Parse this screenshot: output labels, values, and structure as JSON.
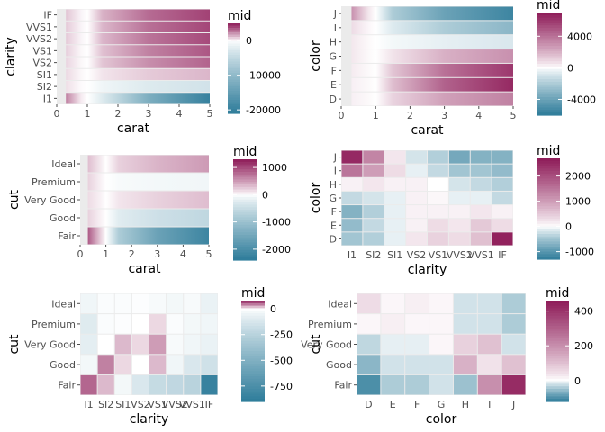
{
  "palette": {
    "low": "#2e7c9a",
    "mid": "#ffffff",
    "high": "#8e1b58",
    "panel_background": "#ebebeb",
    "tick_color": "#4d4d4d"
  },
  "chart_data": [
    {
      "type": "heatmap",
      "id": "clarity-by-carat",
      "xlabel": "carat",
      "ylabel": "clarity",
      "x_ticks": [
        0,
        1,
        2,
        3,
        4,
        5
      ],
      "xlim": [
        0,
        5
      ],
      "y_categories": [
        "I1",
        "SI2",
        "SI1",
        "VS2",
        "VS1",
        "VVS2",
        "VVS1",
        "IF"
      ],
      "legend": {
        "title": "mid",
        "ticks": [
          0,
          -10000,
          -20000
        ],
        "range": [
          -21000,
          5000
        ]
      },
      "gradient_breaks": [
        0.3,
        0.8,
        1.0,
        1.5,
        3.0,
        5.0
      ],
      "rows": [
        {
          "label": "I1",
          "values": [
            2500,
            300,
            0,
            -2500,
            -12000,
            -20000
          ]
        },
        {
          "label": "SI2",
          "values": [
            500,
            50,
            0,
            -1000,
            -2500,
            -3500
          ]
        },
        {
          "label": "SI1",
          "values": [
            600,
            100,
            0,
            400,
            900,
            1300
          ]
        },
        {
          "label": "VS2",
          "values": [
            700,
            100,
            0,
            1000,
            2200,
            3200
          ]
        },
        {
          "label": "VS1",
          "values": [
            800,
            100,
            0,
            1100,
            2500,
            3500
          ]
        },
        {
          "label": "VVS2",
          "values": [
            900,
            150,
            0,
            1300,
            2800,
            3800
          ]
        },
        {
          "label": "VVS1",
          "values": [
            900,
            150,
            0,
            1300,
            2900,
            3900
          ]
        },
        {
          "label": "IF",
          "values": [
            1000,
            150,
            0,
            1400,
            3000,
            4000
          ]
        }
      ]
    },
    {
      "type": "heatmap",
      "id": "color-by-carat",
      "xlabel": "carat",
      "ylabel": "color",
      "x_ticks": [
        0,
        1,
        2,
        3,
        4,
        5
      ],
      "xlim": [
        0,
        5
      ],
      "y_categories": [
        "D",
        "E",
        "F",
        "G",
        "H",
        "I",
        "J"
      ],
      "legend": {
        "title": "mid",
        "ticks": [
          4000,
          0,
          -4000
        ],
        "range": [
          -6000,
          7000
        ]
      },
      "gradient_breaks": [
        0.3,
        0.8,
        1.0,
        1.5,
        3.0,
        5.0
      ],
      "rows": [
        {
          "label": "D",
          "values": [
            300,
            100,
            0,
            1000,
            2500,
            3500
          ]
        },
        {
          "label": "E",
          "values": [
            300,
            100,
            0,
            1600,
            4500,
            6500
          ]
        },
        {
          "label": "F",
          "values": [
            400,
            100,
            0,
            1400,
            4000,
            6000
          ]
        },
        {
          "label": "G",
          "values": [
            500,
            100,
            0,
            600,
            2000,
            3000
          ]
        },
        {
          "label": "H",
          "values": [
            500,
            100,
            0,
            -200,
            -500,
            -800
          ]
        },
        {
          "label": "I",
          "values": [
            800,
            150,
            0,
            -700,
            -2000,
            -3000
          ]
        },
        {
          "label": "J",
          "values": [
            3000,
            500,
            0,
            -2000,
            -4000,
            -5500
          ]
        }
      ]
    },
    {
      "type": "heatmap",
      "id": "cut-by-carat",
      "xlabel": "carat",
      "ylabel": "cut",
      "x_ticks": [
        0,
        1,
        2,
        3,
        4,
        5
      ],
      "xlim": [
        0,
        5
      ],
      "y_categories": [
        "Fair",
        "Good",
        "Very Good",
        "Premium",
        "Ideal"
      ],
      "legend": {
        "title": "mid",
        "ticks": [
          1000,
          0,
          -1000,
          -2000
        ],
        "range": [
          -2400,
          1300
        ]
      },
      "gradient_breaks": [
        0.3,
        0.8,
        1.0,
        1.5,
        3.0,
        5.0
      ],
      "rows": [
        {
          "label": "Fair",
          "values": [
            900,
            200,
            0,
            -800,
            -1600,
            -2200
          ]
        },
        {
          "label": "Good",
          "values": [
            200,
            50,
            0,
            -250,
            -450,
            -600
          ]
        },
        {
          "label": "Very Good",
          "values": [
            150,
            50,
            0,
            100,
            200,
            300
          ]
        },
        {
          "label": "Premium",
          "values": [
            200,
            50,
            0,
            -50,
            -80,
            -100
          ]
        },
        {
          "label": "Ideal",
          "values": [
            300,
            80,
            0,
            200,
            350,
            500
          ]
        }
      ]
    },
    {
      "type": "heatmap",
      "id": "color-by-clarity",
      "xlabel": "clarity",
      "ylabel": "color",
      "x_categories": [
        "I1",
        "SI2",
        "SI1",
        "VS2",
        "VS1",
        "VVS2",
        "VVS1",
        "IF"
      ],
      "y_categories": [
        "D",
        "E",
        "F",
        "G",
        "H",
        "I",
        "J"
      ],
      "legend": {
        "title": "mid",
        "ticks": [
          2000,
          1000,
          0,
          -1000
        ],
        "range": [
          -1300,
          2700
        ]
      },
      "values": [
        [
          -500,
          -400,
          -100,
          200,
          400,
          300,
          600,
          2600
        ],
        [
          -600,
          -300,
          -100,
          100,
          300,
          200,
          500,
          300
        ],
        [
          -700,
          -400,
          -100,
          100,
          100,
          100,
          200,
          100
        ],
        [
          -300,
          -200,
          -100,
          100,
          50,
          -100,
          -100,
          -300
        ],
        [
          100,
          200,
          100,
          100,
          0,
          -200,
          -300,
          -400
        ],
        [
          1500,
          1000,
          300,
          -100,
          -300,
          -500,
          -500,
          -600
        ],
        [
          2500,
          1300,
          200,
          -200,
          -400,
          -800,
          -700,
          -700
        ]
      ]
    },
    {
      "type": "heatmap",
      "id": "cut-by-clarity",
      "xlabel": "clarity",
      "ylabel": "cut",
      "x_categories": [
        "I1",
        "SI2",
        "SI1",
        "VS2",
        "VS1",
        "VVS2",
        "VVS1",
        "IF"
      ],
      "y_categories": [
        "Fair",
        "Good",
        "Very Good",
        "Premium",
        "Ideal"
      ],
      "legend": {
        "title": "mid",
        "ticks": [
          0,
          -250,
          -500,
          -750
        ],
        "range": [
          -900,
          80
        ]
      },
      "values": [
        [
          50,
          20,
          -30,
          -120,
          -200,
          -220,
          -250,
          -850
        ],
        [
          -30,
          40,
          10,
          0,
          20,
          -40,
          -120,
          -160
        ],
        [
          -80,
          0,
          20,
          10,
          30,
          -20,
          -40,
          -60
        ],
        [
          -100,
          -10,
          -5,
          0,
          10,
          -10,
          -30,
          -40
        ],
        [
          -40,
          -10,
          -10,
          -5,
          -20,
          -30,
          -20,
          -60
        ]
      ]
    },
    {
      "type": "heatmap",
      "id": "cut-by-color",
      "xlabel": "color",
      "ylabel": "cut",
      "x_categories": [
        "D",
        "E",
        "F",
        "G",
        "H",
        "I",
        "J"
      ],
      "y_categories": [
        "Fair",
        "Good",
        "Very Good",
        "Premium",
        "Ideal"
      ],
      "legend": {
        "title": "mid",
        "ticks": [
          400,
          200,
          0
        ],
        "range": [
          -120,
          460
        ]
      },
      "values": [
        [
          -100,
          -40,
          -40,
          -20,
          -50,
          200,
          420
        ],
        [
          -60,
          -20,
          -20,
          -20,
          130,
          40,
          100
        ],
        [
          -30,
          -10,
          -10,
          10,
          70,
          100,
          -20
        ],
        [
          10,
          20,
          10,
          10,
          -20,
          -20,
          -40
        ],
        [
          50,
          10,
          20,
          10,
          -20,
          -20,
          -40
        ]
      ]
    }
  ]
}
